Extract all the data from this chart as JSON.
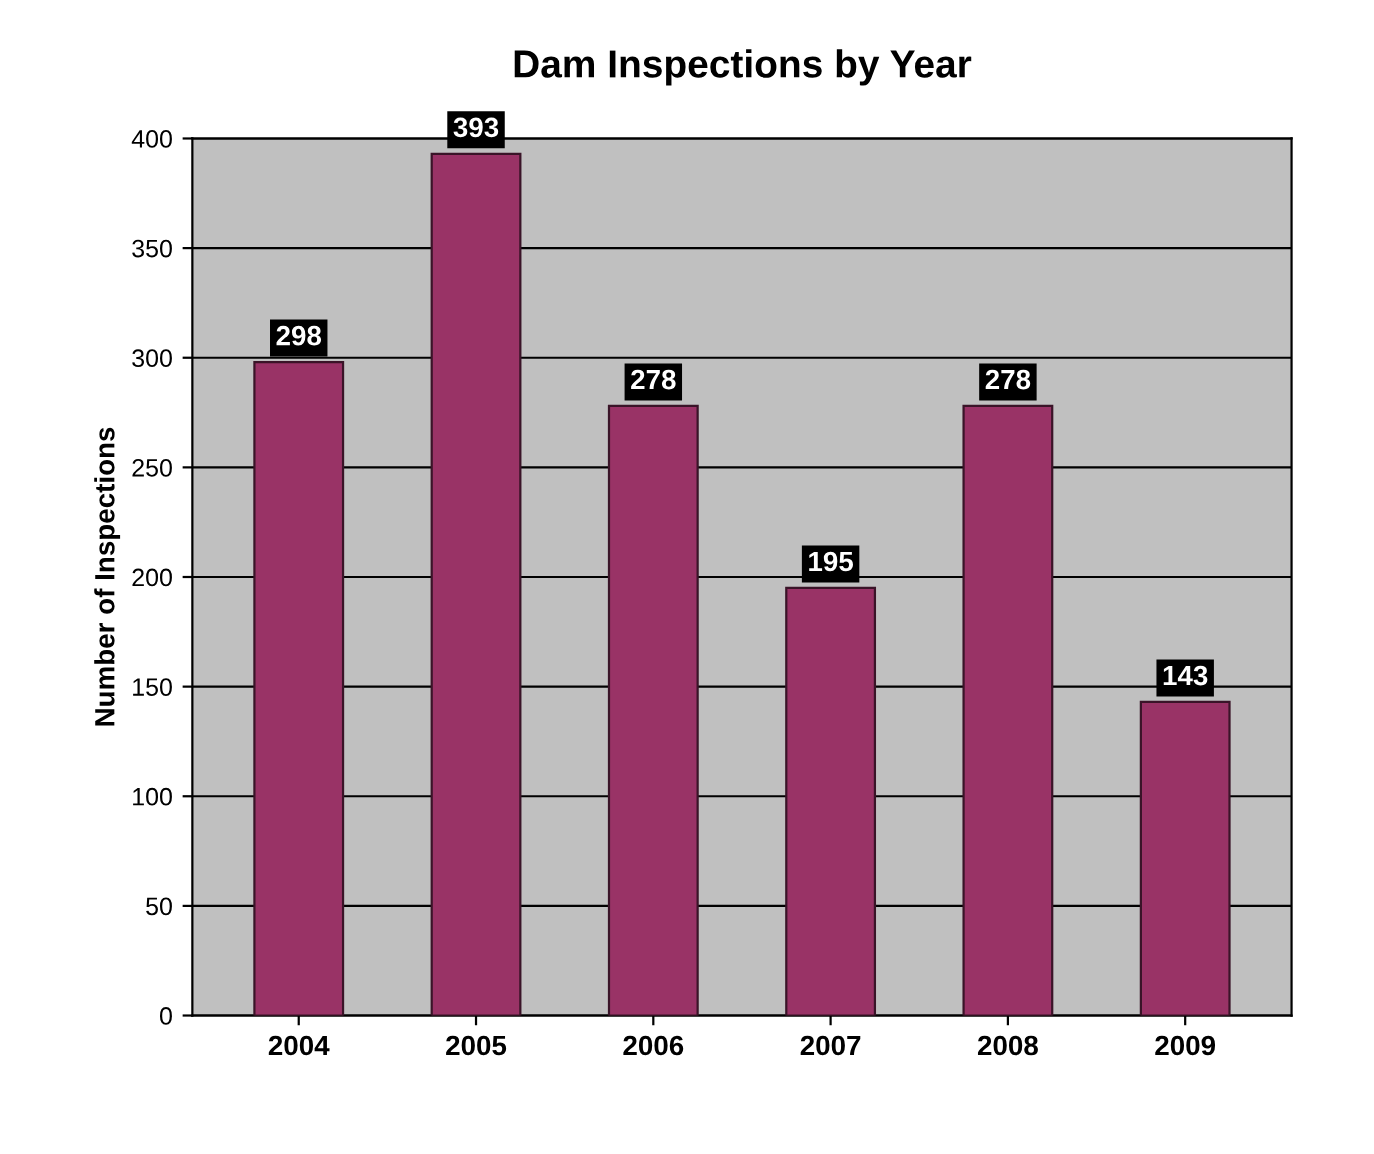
{
  "chart_data": {
    "type": "bar",
    "title": "Dam Inspections by Year",
    "ylabel": "Number of Inspections",
    "categories": [
      "2004",
      "2005",
      "2006",
      "2007",
      "2008",
      "2009"
    ],
    "values": [
      298,
      393,
      278,
      195,
      278,
      143
    ],
    "color": "#993366",
    "ylim": [
      0,
      400
    ],
    "yticks": [
      0,
      50,
      100,
      150,
      200,
      250,
      300,
      350,
      400
    ],
    "grid": "y",
    "data_labels": true
  }
}
